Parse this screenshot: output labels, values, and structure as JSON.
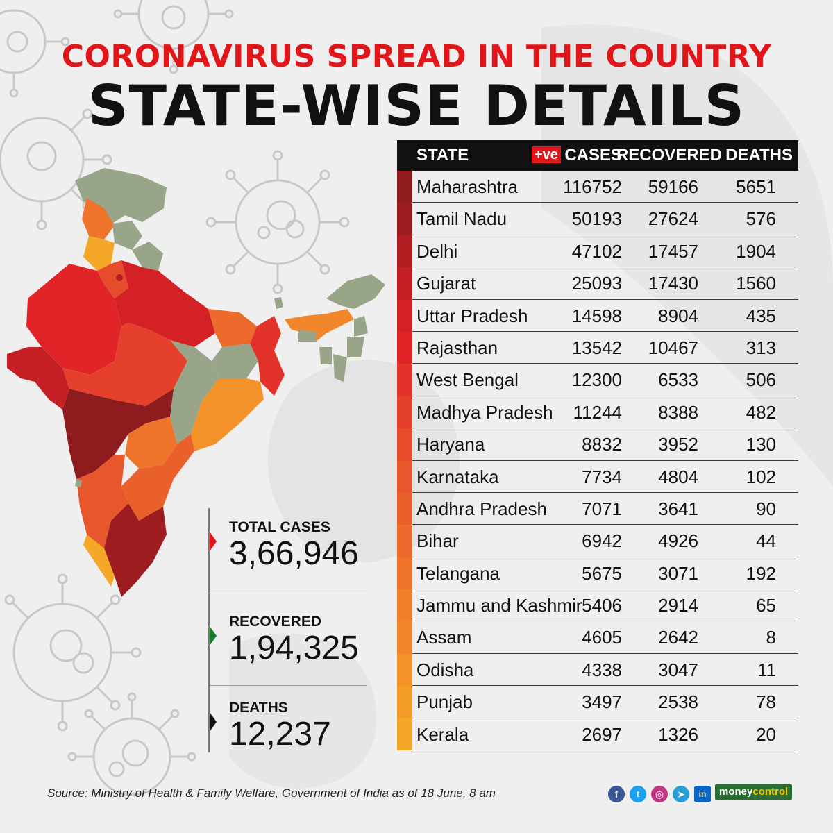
{
  "header": {
    "title": "CORONAVIRUS SPREAD IN THE COUNTRY",
    "subtitle": "STATE-WISE DETAILS"
  },
  "table_headers": {
    "state": "STATE",
    "positive_badge": "+ve",
    "cases": "CASES",
    "recovered": "RECOVERED",
    "deaths": "DEATHS"
  },
  "chart_data": {
    "type": "table",
    "columns": [
      "STATE",
      "+ve CASES",
      "RECOVERED",
      "DEATHS"
    ],
    "rows": [
      {
        "state": "Maharashtra",
        "cases": "116752",
        "recovered": "59166",
        "deaths": "5651",
        "color": "#8e1b1e"
      },
      {
        "state": "Tamil Nadu",
        "cases": "50193",
        "recovered": "27624",
        "deaths": "576",
        "color": "#9d1c1f"
      },
      {
        "state": "Delhi",
        "cases": "47102",
        "recovered": "17457",
        "deaths": "1904",
        "color": "#b11d21"
      },
      {
        "state": "Gujarat",
        "cases": "25093",
        "recovered": "17430",
        "deaths": "1560",
        "color": "#c41f24"
      },
      {
        "state": "Uttar Pradesh",
        "cases": "14598",
        "recovered": "8904",
        "deaths": "435",
        "color": "#d42126"
      },
      {
        "state": "Rajasthan",
        "cases": "13542",
        "recovered": "10467",
        "deaths": "313",
        "color": "#e12428"
      },
      {
        "state": "West Bengal",
        "cases": "12300",
        "recovered": "6533",
        "deaths": "506",
        "color": "#e3322a"
      },
      {
        "state": "Madhya Pradesh",
        "cases": "11244",
        "recovered": "8388",
        "deaths": "482",
        "color": "#e5402b"
      },
      {
        "state": "Haryana",
        "cases": "8832",
        "recovered": "3952",
        "deaths": "130",
        "color": "#e64c2b"
      },
      {
        "state": "Karnataka",
        "cases": "7734",
        "recovered": "4804",
        "deaths": "102",
        "color": "#e8572b"
      },
      {
        "state": "Andhra Pradesh",
        "cases": "7071",
        "recovered": "3641",
        "deaths": "90",
        "color": "#ea602b"
      },
      {
        "state": "Bihar",
        "cases": "6942",
        "recovered": "4926",
        "deaths": "44",
        "color": "#ec6a2b"
      },
      {
        "state": "Telangana",
        "cases": "5675",
        "recovered": "3071",
        "deaths": "192",
        "color": "#ee742b"
      },
      {
        "state": "Jammu and Kashmir",
        "cases": "5406",
        "recovered": "2914",
        "deaths": "65",
        "color": "#f07e2b"
      },
      {
        "state": "Assam",
        "cases": "4605",
        "recovered": "2642",
        "deaths": "8",
        "color": "#f1872a"
      },
      {
        "state": "Odisha",
        "cases": "4338",
        "recovered": "3047",
        "deaths": "11",
        "color": "#f29229"
      },
      {
        "state": "Punjab",
        "cases": "3497",
        "recovered": "2538",
        "deaths": "78",
        "color": "#f49c28"
      },
      {
        "state": "Kerala",
        "cases": "2697",
        "recovered": "1326",
        "deaths": "20",
        "color": "#f5a727"
      }
    ]
  },
  "totals": [
    {
      "label": "TOTAL CASES",
      "value": "3,66,946",
      "marker_color": "#e1161b"
    },
    {
      "label": "RECOVERED",
      "value": "1,94,325",
      "marker_color": "#1a7a2a"
    },
    {
      "label": "DEATHS",
      "value": "12,237",
      "marker_color": "#111111"
    }
  ],
  "footer": {
    "source": "Source: Ministry of Health & Family Welfare, Government of India as of 18 June, 8 am",
    "brand_money": "money",
    "brand_control": "control",
    "social_icons": [
      "facebook-icon",
      "twitter-icon",
      "instagram-icon",
      "telegram-icon",
      "linkedin-icon"
    ]
  }
}
